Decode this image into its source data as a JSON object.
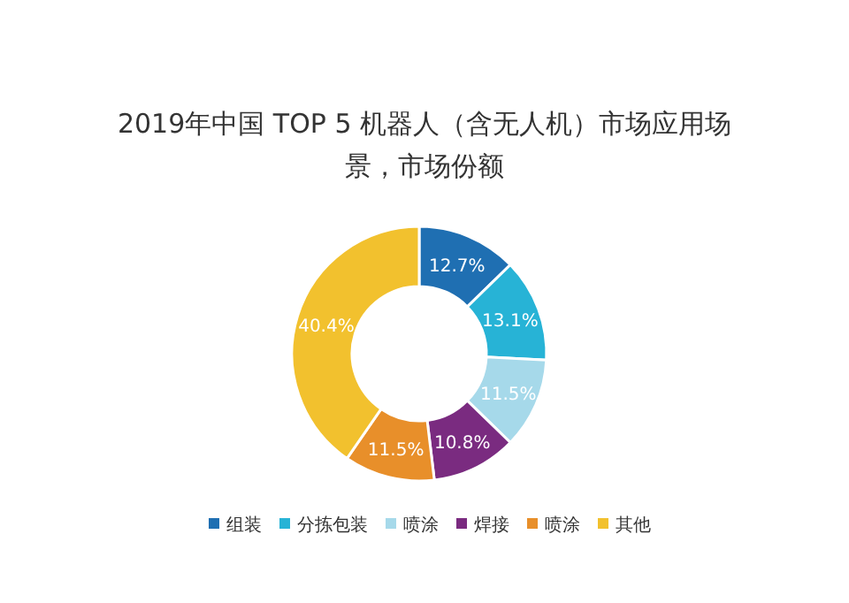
{
  "chart_data": {
    "type": "donut",
    "title": "2019年中国 TOP 5 机器人（含无人机）市场应用场景，市场份额",
    "categories": [
      "组装",
      "分拣包装",
      "喷涂",
      "焊接",
      "喷涂",
      "其他"
    ],
    "values": [
      12.7,
      13.1,
      11.5,
      10.8,
      11.5,
      40.4
    ],
    "colors": [
      "#1f6fb2",
      "#27b3d6",
      "#a6d9ea",
      "#7a2b80",
      "#e88f2a",
      "#f2c12e"
    ],
    "value_labels": [
      "12.7%",
      "13.1%",
      "11.5%",
      "10.8%",
      "11.5%",
      "40.4%"
    ],
    "legend": "bottom"
  }
}
